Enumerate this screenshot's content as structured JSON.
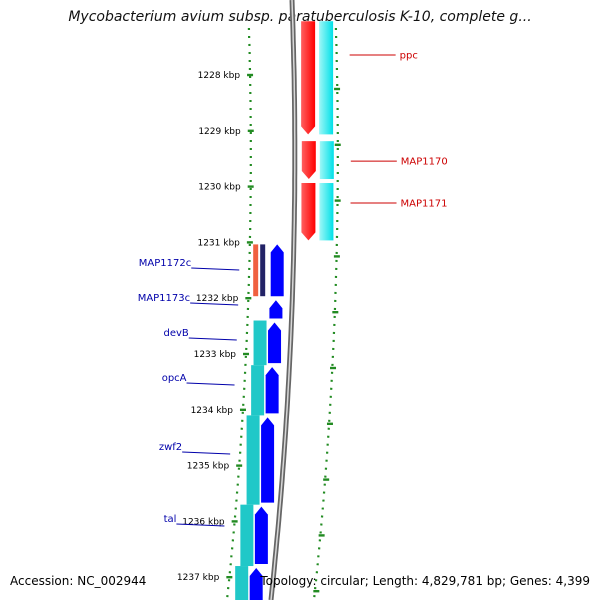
{
  "title": "Mycobacterium avium subsp. paratuberculosis K-10, complete g...",
  "footer": {
    "accession": "Accession: NC_002944",
    "summary": "Topology: circular; Length: 4,829,781 bp; Genes: 4,399"
  },
  "ruler": {
    "unit": "kbp",
    "ticks": [
      "1228 kbp",
      "1229 kbp",
      "1230 kbp",
      "1231 kbp",
      "1232 kbp",
      "1233 kbp",
      "1234 kbp",
      "1235 kbp",
      "1236 kbp",
      "1237 kbp"
    ]
  },
  "colors": {
    "forward_cds": "#ff0000",
    "reverse_cds": "#0000ff",
    "forward_feature": "#00e0e8",
    "reverse_feature": "#20c8c8",
    "backbone": "#888888",
    "tick": "#228b22",
    "forward_label": "#cc0000",
    "reverse_label": "#0000aa"
  },
  "genes": {
    "forward": [
      {
        "name": "ppc",
        "start": 1227.0,
        "end": 1229.1
      },
      {
        "name": "MAP1170",
        "start": 1229.15,
        "end": 1229.9
      },
      {
        "name": "MAP1171",
        "start": 1229.9,
        "end": 1231.0
      }
    ],
    "reverse": [
      {
        "name": "MAP1172c",
        "start": 1231.0,
        "end": 1232.0
      },
      {
        "name": "MAP1173c",
        "start": 1232.0,
        "end": 1232.4
      },
      {
        "name": "devB",
        "start": 1232.4,
        "end": 1233.2
      },
      {
        "name": "opcA",
        "start": 1233.2,
        "end": 1234.1
      },
      {
        "name": "zwf2",
        "start": 1234.1,
        "end": 1235.7
      },
      {
        "name": "tal",
        "start": 1235.7,
        "end": 1236.8
      },
      {
        "name": "",
        "start": 1236.8,
        "end": 1237.6
      }
    ]
  }
}
